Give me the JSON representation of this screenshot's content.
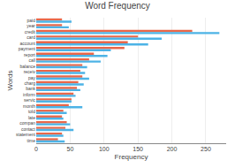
{
  "chart_data": {
    "type": "bar",
    "orientation": "horizontal",
    "title": "Word Frequency",
    "xlabel": "Frequency",
    "ylabel": "Words",
    "categories": [
      "paid",
      "year",
      "credit",
      "card",
      "account",
      "payment",
      "report",
      "call",
      "balance",
      "receiv",
      "pay",
      "charg",
      "bank",
      "inform",
      "servic",
      "month",
      "told",
      "late",
      "compan",
      "contact",
      "statement",
      "time"
    ],
    "series": [
      {
        "color": "#e8674a",
        "values": [
          38,
          38,
          230,
          150,
          135,
          130,
          85,
          78,
          68,
          65,
          68,
          62,
          60,
          55,
          52,
          48,
          40,
          38,
          45,
          43,
          38,
          32
        ]
      },
      {
        "color": "#4db3e6",
        "values": [
          52,
          48,
          270,
          185,
          165,
          110,
          105,
          95,
          75,
          72,
          78,
          70,
          65,
          58,
          52,
          68,
          45,
          40,
          50,
          55,
          40,
          42
        ]
      }
    ],
    "xlim": [
      0,
      280
    ],
    "xticks": [
      0,
      50,
      100,
      150,
      200,
      250
    ],
    "grid": true
  }
}
